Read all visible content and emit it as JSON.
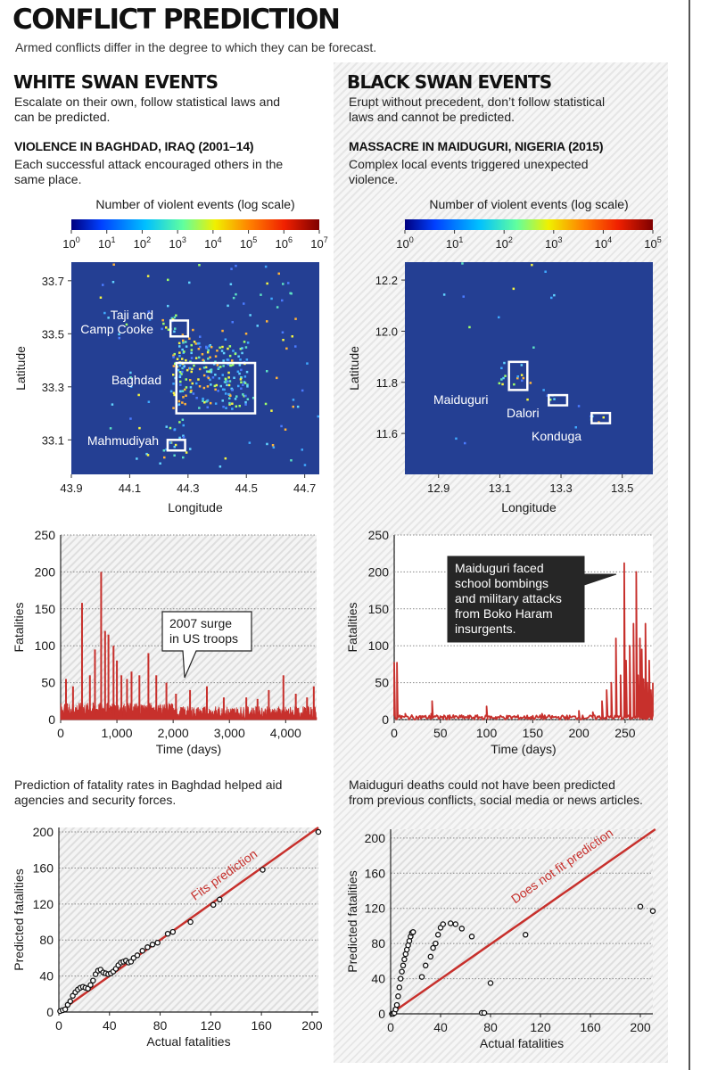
{
  "header": {
    "title": "CONFLICT PREDICTION",
    "subtitle": "Armed conflicts differ in the degree to which they can be forecast."
  },
  "white": {
    "heading": "WHITE SWAN EVENTS",
    "desc1": "Escalate on their own, follow statistical laws and",
    "desc2": "can be predicted.",
    "case_title": "VIOLENCE IN BAGHDAD, IRAQ (2001–14)",
    "case1": "Each successful attack encouraged others in the",
    "case2": "same place.",
    "pred1": "Prediction of fatality rates in Baghdad helped aid",
    "pred2": "agencies and security forces."
  },
  "black": {
    "heading": "BLACK SWAN EVENTS",
    "desc1": "Erupt without precedent, don’t follow statistical",
    "desc2": "laws and cannot be predicted.",
    "case_title": "MASSACRE IN MAIDUGURI, NIGERIA (2015)",
    "case1": "Complex local events triggered unexpected",
    "case2": "violence.",
    "pred1": "Maiduguri deaths could not have been predicted",
    "pred2": "from previous conflicts, social media or news articles."
  },
  "colors": {
    "map_bg": "#243f93",
    "line": "#c7302c",
    "box": "#ffffff"
  },
  "chart_data": [
    {
      "type": "heatmap",
      "id": "baghdad-map",
      "colorbar_title": "Number of violent events (log scale)",
      "colorbar_ticks": [
        "0",
        "1",
        "2",
        "3",
        "4",
        "5",
        "6",
        "7"
      ],
      "xlabel": "Longitude",
      "ylabel": "Latitude",
      "xticks": [
        "43.9",
        "44.1",
        "44.3",
        "44.5",
        "44.7"
      ],
      "xlim": [
        43.9,
        44.75
      ],
      "yticks": [
        "33.7",
        "33.5",
        "33.3",
        "33.1"
      ],
      "ylim": [
        32.97,
        33.77
      ],
      "regions": [
        {
          "name": "Taji and Camp Cooke",
          "lines": [
            "Taji and",
            "Camp Cooke"
          ],
          "lon": [
            44.24,
            44.3
          ],
          "lat": [
            33.49,
            33.55
          ]
        },
        {
          "name": "Baghdad",
          "lines": [
            "Baghdad"
          ],
          "lon": [
            44.26,
            44.53
          ],
          "lat": [
            33.2,
            33.39
          ]
        },
        {
          "name": "Mahmudiyah",
          "lines": [
            "Mahmudiyah"
          ],
          "lon": [
            44.23,
            44.29
          ],
          "lat": [
            33.06,
            33.1
          ]
        }
      ]
    },
    {
      "type": "heatmap",
      "id": "maiduguri-map",
      "colorbar_title": "Number of violent events (log scale)",
      "colorbar_ticks": [
        "0",
        "1",
        "2",
        "3",
        "4",
        "5"
      ],
      "xlabel": "Longitude",
      "ylabel": "Latitude",
      "xticks": [
        "12.9",
        "13.1",
        "13.3",
        "13.5"
      ],
      "xlim": [
        12.79,
        13.6
      ],
      "yticks": [
        "12.2",
        "12.0",
        "11.8",
        "11.6"
      ],
      "ylim": [
        11.44,
        12.27
      ],
      "regions": [
        {
          "name": "Maiduguri",
          "lines": [
            "Maiduguri"
          ],
          "lon": [
            13.13,
            13.19
          ],
          "lat": [
            11.77,
            11.88
          ]
        },
        {
          "name": "Dalori",
          "lines": [
            "Dalori"
          ],
          "lon": [
            13.26,
            13.32
          ],
          "lat": [
            11.71,
            11.75
          ]
        },
        {
          "name": "Konduga",
          "lines": [
            "Konduga"
          ],
          "lon": [
            13.4,
            13.46
          ],
          "lat": [
            11.64,
            11.68
          ]
        }
      ]
    },
    {
      "type": "line",
      "id": "baghdad-fatalities",
      "xlabel": "Time (days)",
      "ylabel": "Fatalities",
      "xticks": [
        "0",
        "1,000",
        "2,000",
        "3,000",
        "4,000"
      ],
      "xlim": [
        0,
        4550
      ],
      "yticks": [
        "0",
        "50",
        "100",
        "150",
        "200",
        "250"
      ],
      "ylim": [
        0,
        250
      ],
      "annotation": {
        "lines": [
          "2007 surge",
          "in US troops"
        ],
        "x": 2050,
        "y": 40
      },
      "peaks": [
        [
          95,
          55
        ],
        [
          220,
          45
        ],
        [
          380,
          158
        ],
        [
          520,
          60
        ],
        [
          610,
          95
        ],
        [
          720,
          200
        ],
        [
          790,
          120
        ],
        [
          850,
          115
        ],
        [
          940,
          100
        ],
        [
          1000,
          80
        ],
        [
          1080,
          60
        ],
        [
          1180,
          55
        ],
        [
          1260,
          65
        ],
        [
          1400,
          60
        ],
        [
          1560,
          90
        ],
        [
          1700,
          60
        ],
        [
          1880,
          50
        ],
        [
          2050,
          35
        ],
        [
          2300,
          40
        ],
        [
          2600,
          45
        ],
        [
          2900,
          30
        ],
        [
          3300,
          30
        ],
        [
          3500,
          28
        ],
        [
          3700,
          40
        ],
        [
          3960,
          60
        ],
        [
          4180,
          35
        ],
        [
          4380,
          30
        ],
        [
          4500,
          45
        ]
      ]
    },
    {
      "type": "line",
      "id": "maiduguri-fatalities",
      "xlabel": "Time (days)",
      "ylabel": "Fatalities",
      "xticks": [
        "0",
        "50",
        "100",
        "150",
        "200",
        "250"
      ],
      "xlim": [
        0,
        280
      ],
      "yticks": [
        "0",
        "50",
        "100",
        "150",
        "200",
        "250"
      ],
      "ylim": [
        0,
        250
      ],
      "annotation": {
        "lines": [
          "Maiduguri faced",
          "school bombings",
          "and military attacks",
          "from Boko Haram",
          "insurgents."
        ]
      },
      "series": [
        [
          0,
          77
        ],
        [
          3,
          77
        ],
        [
          4,
          5
        ],
        [
          8,
          5
        ],
        [
          12,
          8
        ],
        [
          20,
          4
        ],
        [
          30,
          5
        ],
        [
          40,
          8
        ],
        [
          41,
          25
        ],
        [
          42,
          5
        ],
        [
          60,
          6
        ],
        [
          80,
          4
        ],
        [
          100,
          18
        ],
        [
          101,
          5
        ],
        [
          130,
          5
        ],
        [
          160,
          8
        ],
        [
          190,
          5
        ],
        [
          200,
          12
        ],
        [
          215,
          10
        ],
        [
          225,
          25
        ],
        [
          230,
          40
        ],
        [
          235,
          50
        ],
        [
          240,
          110
        ],
        [
          245,
          60
        ],
        [
          249,
          212
        ],
        [
          251,
          80
        ],
        [
          255,
          100
        ],
        [
          259,
          130
        ],
        [
          262,
          200
        ],
        [
          264,
          60
        ],
        [
          266,
          110
        ],
        [
          268,
          95
        ],
        [
          270,
          55
        ],
        [
          272,
          130
        ],
        [
          274,
          50
        ],
        [
          276,
          80
        ],
        [
          278,
          40
        ],
        [
          280,
          50
        ]
      ]
    },
    {
      "type": "scatter",
      "id": "baghdad-prediction",
      "xlabel": "Actual fatalities",
      "ylabel": "Predicted fatalities",
      "xticks": [
        "0",
        "40",
        "80",
        "120",
        "160",
        "200"
      ],
      "yticks": [
        "0",
        "40",
        "80",
        "120",
        "160",
        "200"
      ],
      "xlim": [
        0,
        205
      ],
      "ylim": [
        0,
        205
      ],
      "fit_label": "Fits prediction",
      "fit_line": [
        [
          0,
          0
        ],
        [
          205,
          205
        ]
      ],
      "points": [
        [
          1,
          1
        ],
        [
          3,
          2
        ],
        [
          5,
          3
        ],
        [
          7,
          8
        ],
        [
          9,
          12
        ],
        [
          11,
          18
        ],
        [
          13,
          22
        ],
        [
          15,
          25
        ],
        [
          17,
          27
        ],
        [
          19,
          28
        ],
        [
          21,
          27
        ],
        [
          23,
          26
        ],
        [
          25,
          30
        ],
        [
          27,
          35
        ],
        [
          29,
          42
        ],
        [
          31,
          46
        ],
        [
          33,
          47
        ],
        [
          35,
          44
        ],
        [
          37,
          43
        ],
        [
          39,
          42
        ],
        [
          41,
          43
        ],
        [
          43,
          45
        ],
        [
          45,
          48
        ],
        [
          47,
          52
        ],
        [
          49,
          55
        ],
        [
          51,
          56
        ],
        [
          53,
          57
        ],
        [
          55,
          55
        ],
        [
          57,
          56
        ],
        [
          59,
          60
        ],
        [
          62,
          63
        ],
        [
          66,
          68
        ],
        [
          70,
          72
        ],
        [
          74,
          75
        ],
        [
          78,
          77
        ],
        [
          86,
          87
        ],
        [
          90,
          89
        ],
        [
          104,
          100
        ],
        [
          122,
          119
        ],
        [
          127,
          125
        ],
        [
          161,
          158
        ],
        [
          205,
          200
        ]
      ]
    },
    {
      "type": "scatter",
      "id": "maiduguri-prediction",
      "xlabel": "Actual fatalities",
      "ylabel": "Predicted fatalities",
      "xticks": [
        "0",
        "40",
        "80",
        "120",
        "160",
        "200"
      ],
      "yticks": [
        "0",
        "40",
        "80",
        "120",
        "160",
        "200"
      ],
      "xlim": [
        0,
        210
      ],
      "ylim": [
        0,
        210
      ],
      "fit_label": "Does not fit prediction",
      "fit_line": [
        [
          0,
          0
        ],
        [
          212,
          210
        ]
      ],
      "points": [
        [
          1,
          0
        ],
        [
          2,
          0
        ],
        [
          3,
          1
        ],
        [
          4,
          5
        ],
        [
          5,
          10
        ],
        [
          6,
          20
        ],
        [
          7,
          30
        ],
        [
          8,
          40
        ],
        [
          9,
          48
        ],
        [
          10,
          55
        ],
        [
          11,
          62
        ],
        [
          12,
          68
        ],
        [
          13,
          73
        ],
        [
          14,
          78
        ],
        [
          15,
          83
        ],
        [
          16,
          88
        ],
        [
          17,
          92
        ],
        [
          18,
          93
        ],
        [
          25,
          42
        ],
        [
          28,
          55
        ],
        [
          32,
          65
        ],
        [
          34,
          75
        ],
        [
          36,
          80
        ],
        [
          38,
          90
        ],
        [
          40,
          98
        ],
        [
          42,
          102
        ],
        [
          48,
          103
        ],
        [
          52,
          102
        ],
        [
          57,
          97
        ],
        [
          65,
          88
        ],
        [
          73,
          1
        ],
        [
          75,
          1
        ],
        [
          80,
          35
        ],
        [
          108,
          90
        ],
        [
          200,
          122
        ],
        [
          210,
          117
        ]
      ]
    }
  ]
}
